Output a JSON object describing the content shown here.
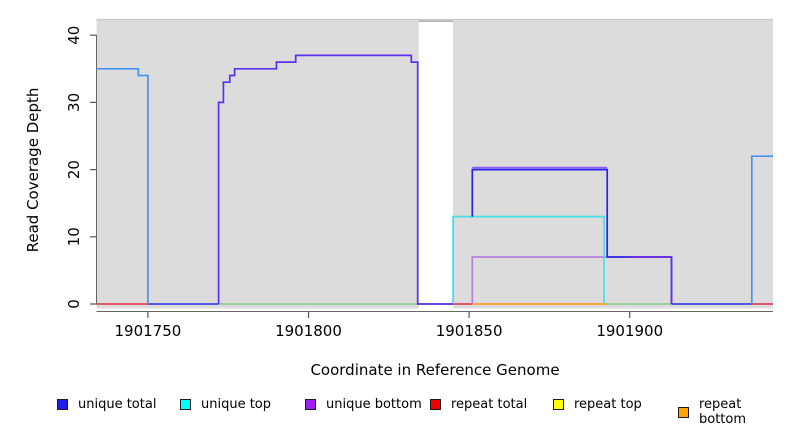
{
  "figure": {
    "xlabel": "Coordinate in Reference Genome",
    "ylabel": "Read Coverage Depth",
    "panel_background": "#DCDCDC",
    "panel_border_color": "#C8C8C8",
    "gap_border_color": "#999999",
    "axis_color": "#666666",
    "tick_color": "#555555",
    "x_ticks": [
      {
        "value": 1901750,
        "label": "1901750"
      },
      {
        "value": 1901800,
        "label": "1901800"
      },
      {
        "value": 1901850,
        "label": "1901850"
      },
      {
        "value": 1901900,
        "label": "1901900"
      }
    ],
    "y_ticks": [
      {
        "value": 0,
        "label": "0"
      },
      {
        "value": 10,
        "label": "10"
      },
      {
        "value": 20,
        "label": "20"
      },
      {
        "value": 30,
        "label": "30"
      },
      {
        "value": 40,
        "label": "40"
      }
    ]
  },
  "chart_data": {
    "type": "line",
    "title": "",
    "xlabel": "Coordinate in Reference Genome",
    "ylabel": "Read Coverage Depth",
    "x_range": [
      1901734,
      1901944.6
    ],
    "y_range": [
      0,
      42.3
    ],
    "grid": false,
    "legend_position": "bottom",
    "coverage_regions": [
      [
        1901734,
        1901834.3
      ],
      [
        1901845,
        1901944.6
      ]
    ],
    "gap_region": [
      1901834.3,
      1901845
    ],
    "legend": [
      {
        "label": "unique total",
        "color": "#1E1EE8"
      },
      {
        "label": "unique top",
        "color": "#00FFFF"
      },
      {
        "label": "unique bottom",
        "color": "#A020F0"
      },
      {
        "label": "repeat total",
        "color": "#EE0000"
      },
      {
        "label": "repeat top",
        "color": "#FFFF00"
      },
      {
        "label": "repeat bottom",
        "color": "#FFA500"
      }
    ],
    "series": [
      {
        "name": "baseline-green",
        "color": "#8FCF8F",
        "points": [
          [
            1901772,
            0
          ],
          [
            1901944.6,
            0
          ]
        ]
      },
      {
        "name": "repeat-total-left",
        "color": "#E8455E",
        "points": [
          [
            1901734,
            0
          ],
          [
            1901750,
            0
          ]
        ]
      },
      {
        "name": "repeat-total-mid",
        "color": "#E8455E",
        "points": [
          [
            1901845,
            0
          ],
          [
            1901851,
            0
          ]
        ]
      },
      {
        "name": "repeat-total-right",
        "color": "#E8455E",
        "points": [
          [
            1901938,
            0
          ],
          [
            1901944.6,
            0
          ]
        ]
      },
      {
        "name": "unique-total-zero-left",
        "color": "#4644E8",
        "points": [
          [
            1901750,
            0
          ],
          [
            1901772,
            0
          ]
        ]
      },
      {
        "name": "unique-total-zero-right",
        "color": "#4644E8",
        "points": [
          [
            1901913,
            0
          ],
          [
            1901938,
            0
          ]
        ]
      },
      {
        "name": "repeat-bottom-orange",
        "color": "#FF9E2C",
        "points": [
          [
            1901851,
            0
          ],
          [
            1901893,
            0
          ]
        ]
      },
      {
        "name": "unique-bottom-low",
        "color": "#B57EDC",
        "points": [
          [
            1901851,
            0
          ],
          [
            1901851,
            7
          ],
          [
            1901893,
            7
          ]
        ]
      },
      {
        "name": "unique-top-cyan",
        "color": "#45E0E5",
        "points": [
          [
            1901845,
            0
          ],
          [
            1901845,
            13
          ],
          [
            1901892,
            13
          ],
          [
            1901892,
            0
          ]
        ]
      },
      {
        "name": "unique-main-shape",
        "color": "#5E2FEE",
        "points": [
          [
            1901772,
            0
          ],
          [
            1901772,
            30
          ],
          [
            1901773.5,
            30
          ],
          [
            1901773.5,
            33
          ],
          [
            1901775.5,
            33
          ],
          [
            1901775.5,
            34
          ],
          [
            1901777,
            34
          ],
          [
            1901777,
            35
          ],
          [
            1901790,
            35
          ],
          [
            1901790,
            36
          ],
          [
            1901796,
            36
          ],
          [
            1901796,
            37
          ],
          [
            1901832,
            37
          ],
          [
            1901832,
            36
          ],
          [
            1901834,
            36
          ],
          [
            1901834,
            0
          ],
          [
            1901845,
            0
          ]
        ]
      },
      {
        "name": "unique-total-box",
        "color": "#2B22EC",
        "points": [
          [
            1901851,
            13
          ],
          [
            1901851,
            20
          ],
          [
            1901893,
            20
          ],
          [
            1901893,
            7
          ],
          [
            1901913,
            7
          ],
          [
            1901913,
            0
          ]
        ]
      },
      {
        "name": "unique-bottom-cap",
        "color": "#8B5CF6",
        "points": [
          [
            1901851,
            20.3
          ],
          [
            1901893,
            20.3
          ]
        ]
      },
      {
        "name": "unique-bottom-right",
        "color": "#6F2BE0",
        "points": [
          [
            1901900,
            7
          ],
          [
            1901913,
            7
          ],
          [
            1901913,
            0
          ]
        ]
      },
      {
        "name": "unique-total-left-peak",
        "color": "#4795F2",
        "points": [
          [
            1901734,
            35
          ],
          [
            1901747,
            35
          ],
          [
            1901747,
            34
          ],
          [
            1901750,
            34
          ],
          [
            1901750,
            0
          ]
        ]
      },
      {
        "name": "unique-total-right-peak",
        "color": "#4795F2",
        "points": [
          [
            1901938,
            0
          ],
          [
            1901938,
            22
          ],
          [
            1901944.6,
            22
          ]
        ]
      }
    ]
  }
}
